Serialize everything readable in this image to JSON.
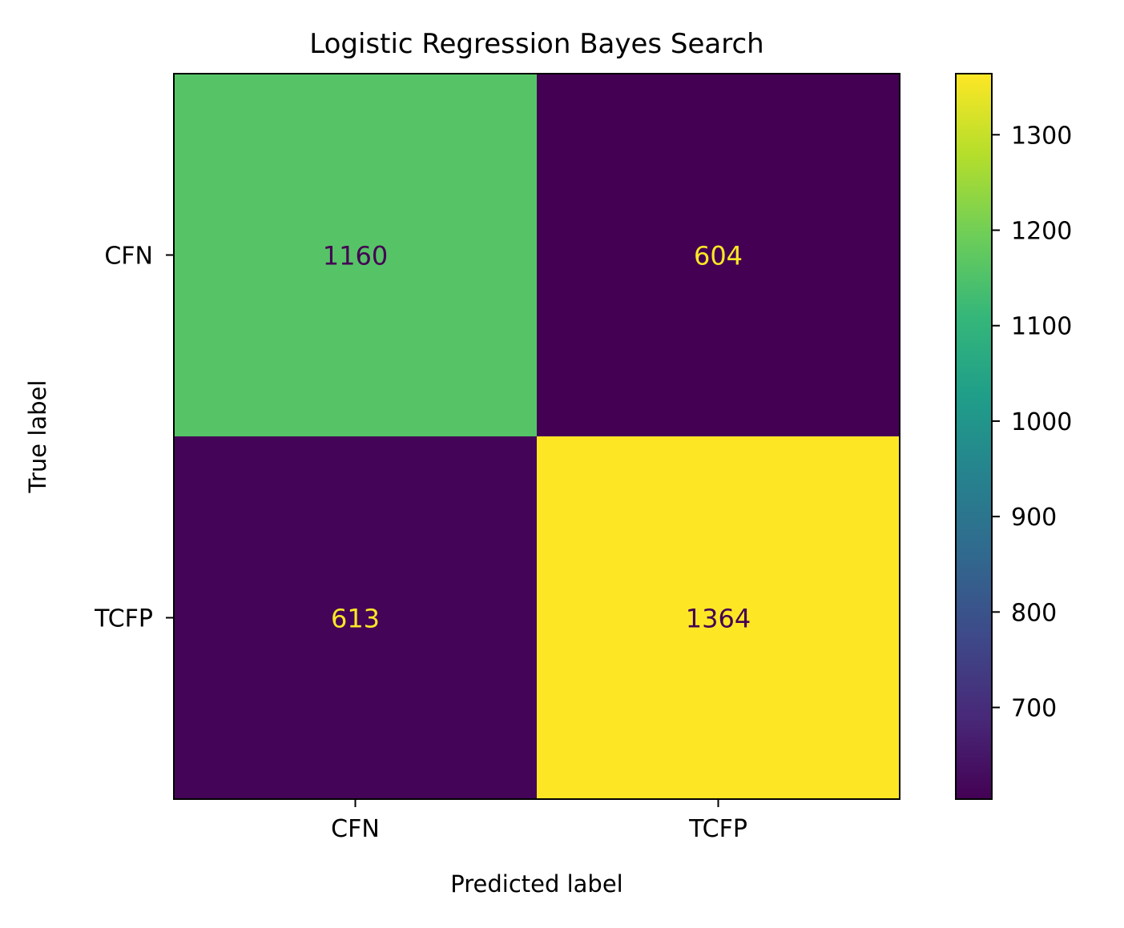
{
  "chart_data": {
    "type": "heatmap",
    "title": "Logistic Regression Bayes Search",
    "xlabel": "Predicted label",
    "ylabel": "True label",
    "x_categories": [
      "CFN",
      "TCFP"
    ],
    "y_categories": [
      "CFN",
      "TCFP"
    ],
    "matrix": [
      [
        1160,
        604
      ],
      [
        613,
        1364
      ]
    ],
    "colormap": "viridis",
    "colorbar": {
      "min": 604,
      "max": 1364,
      "ticks": [
        700,
        800,
        900,
        1000,
        1100,
        1200,
        1300
      ]
    },
    "text_colors": {
      "on_dark": "#fde725",
      "on_light": "#440154"
    }
  }
}
